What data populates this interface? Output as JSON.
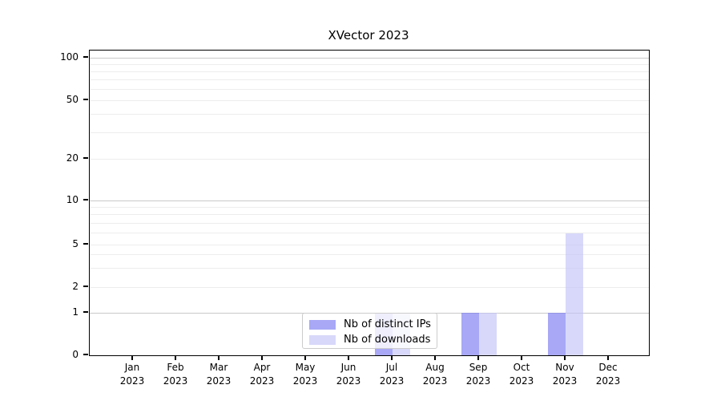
{
  "chart_data": {
    "type": "bar",
    "title": "XVector 2023",
    "categories": [
      "Jan 2023",
      "Feb 2023",
      "Mar 2023",
      "Apr 2023",
      "May 2023",
      "Jun 2023",
      "Jul 2023",
      "Aug 2023",
      "Sep 2023",
      "Oct 2023",
      "Nov 2023",
      "Dec 2023"
    ],
    "months": [
      "Jan",
      "Feb",
      "Mar",
      "Apr",
      "May",
      "Jun",
      "Jul",
      "Aug",
      "Sep",
      "Oct",
      "Nov",
      "Dec"
    ],
    "years": [
      "2023",
      "2023",
      "2023",
      "2023",
      "2023",
      "2023",
      "2023",
      "2023",
      "2023",
      "2023",
      "2023",
      "2023"
    ],
    "series": [
      {
        "name": "Nb of distinct IPs",
        "fill": "rgba(121,121,241,0.65)",
        "hex_over_white": "#a8a8f6",
        "values": [
          0,
          0,
          0,
          0,
          0,
          0,
          1,
          0,
          1,
          0,
          1,
          0
        ]
      },
      {
        "name": "Nb of downloads",
        "fill": "rgba(195,195,247,0.65)",
        "hex_over_white": "#d8d8fa",
        "values": [
          0,
          0,
          0,
          0,
          0,
          0,
          1,
          0,
          1,
          0,
          6,
          0
        ]
      }
    ],
    "yticks": [
      0,
      1,
      2,
      5,
      10,
      20,
      50,
      100
    ],
    "ytick_labels": [
      "0",
      "1",
      "2",
      "5",
      "10",
      "20",
      "50",
      "100"
    ],
    "minor_gridline_values": [
      2,
      3,
      4,
      5,
      6,
      7,
      8,
      9,
      20,
      30,
      40,
      50,
      60,
      70,
      80,
      90
    ],
    "major_gridline_values": [
      1,
      10,
      100
    ],
    "ylim": [
      0,
      110
    ],
    "xlabel": "",
    "ylabel": "",
    "scale": "log-like with zero baseline",
    "grid": true,
    "legend_position": "lower center"
  },
  "colors": {
    "background": "#ffffff",
    "axis": "#000000",
    "text": "#000000",
    "grid_major": "#c9c9c9",
    "grid_minor": "#ededed",
    "legend_border": "#cccccc",
    "legend_bg": "rgba(255,255,255,0.8)"
  }
}
